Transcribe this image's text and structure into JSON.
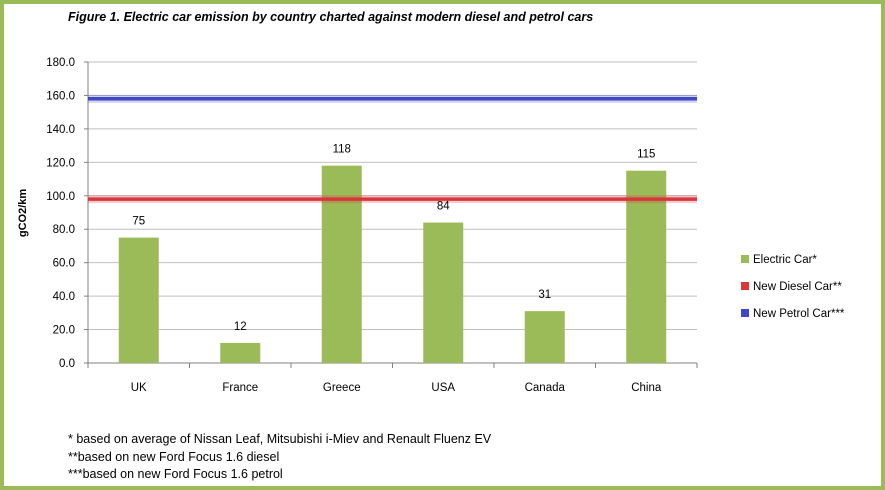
{
  "title": "Figure 1. Electric car emission by country charted against modern diesel and petrol cars",
  "footnotes": [
    "* based on average of Nissan Leaf, Mitsubishi i-Miev and Renault Fluenz EV",
    "**based on new Ford Focus 1.6 diesel",
    "***based on new Ford Focus 1.6 petrol"
  ],
  "colors": {
    "electric": "#9bbb59",
    "diesel": "#d9373b",
    "petrol": "#3e47c8",
    "frame": "#9bbb59",
    "grid": "#bfbfbf"
  },
  "chart_data": {
    "type": "bar",
    "title": "Figure 1. Electric car emission by country charted against modern diesel and petrol cars",
    "xlabel": "",
    "ylabel": "gCO2/km",
    "ylim": [
      0,
      180
    ],
    "yticks": [
      "0.0",
      "20.0",
      "40.0",
      "60.0",
      "80.0",
      "100.0",
      "120.0",
      "140.0",
      "160.0",
      "180.0"
    ],
    "categories": [
      "UK",
      "France",
      "Greece",
      "USA",
      "Canada",
      "China"
    ],
    "series": [
      {
        "name": "Electric Car*",
        "type": "bar",
        "values": [
          75,
          12,
          118,
          84,
          31,
          115
        ]
      },
      {
        "name": "New Diesel Car**",
        "type": "line",
        "values": [
          98,
          98,
          98,
          98,
          98,
          98
        ]
      },
      {
        "name": "New Petrol Car***",
        "type": "line",
        "values": [
          158,
          158,
          158,
          158,
          158,
          158
        ]
      }
    ],
    "data_labels": [
      "75",
      "12",
      "118",
      "84",
      "31",
      "115"
    ],
    "legend_position": "right",
    "grid": true
  }
}
